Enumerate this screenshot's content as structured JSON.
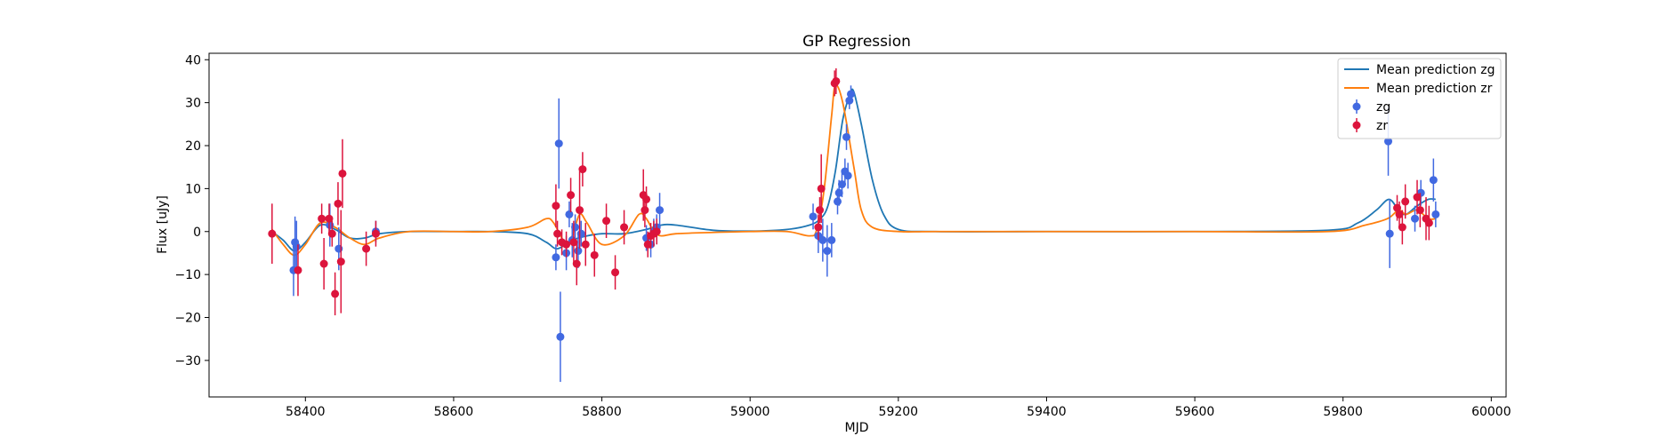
{
  "chart_data": {
    "type": "scatter",
    "title": "GP Regression",
    "xlabel": "MJD",
    "ylabel": "Flux [uJy]",
    "xlim": [
      58270,
      60020
    ],
    "ylim": [
      -38.5,
      41.5
    ],
    "xticks": [
      58400,
      58600,
      58800,
      59000,
      59200,
      59400,
      59600,
      59800,
      60000
    ],
    "yticks": [
      -30,
      -20,
      -10,
      0,
      10,
      20,
      30,
      40
    ],
    "legend_position": "top-right",
    "colors": {
      "zg_line": "#1f77b4",
      "zr_line": "#ff7f0e",
      "zg_points": "#4169e1",
      "zr_points": "#dc143c"
    },
    "series": [
      {
        "name": "Mean prediction zg",
        "kind": "line",
        "x": [
          58355,
          58370,
          58385,
          58400,
          58420,
          58440,
          58460,
          58480,
          58500,
          58540,
          58600,
          58650,
          58700,
          58725,
          58740,
          58760,
          58780,
          58800,
          58830,
          58860,
          58880,
          58900,
          58950,
          59000,
          59050,
          59080,
          59095,
          59105,
          59115,
          59125,
          59135,
          59140,
          59150,
          59165,
          59180,
          59200,
          59250,
          59400,
          59600,
          59780,
          59820,
          59845,
          59862,
          59875,
          59885,
          59900,
          59915,
          59925
        ],
        "y": [
          0,
          -2,
          -4.5,
          -2.5,
          1.5,
          0.5,
          -1.5,
          -1.5,
          -0.5,
          0,
          0,
          0,
          -0.5,
          -2.5,
          -4,
          -2,
          -1,
          -0.5,
          -0.5,
          0.5,
          1.5,
          1.5,
          0.3,
          0.1,
          0.5,
          1.5,
          3,
          6,
          14,
          26,
          32,
          32.5,
          25,
          12,
          4,
          0.5,
          0,
          0,
          0,
          0.3,
          2,
          5,
          7.5,
          5,
          4,
          6,
          7.5,
          7.5
        ]
      },
      {
        "name": "Mean prediction zr",
        "kind": "line",
        "x": [
          58355,
          58370,
          58385,
          58400,
          58420,
          58440,
          58460,
          58480,
          58500,
          58540,
          58600,
          58650,
          58700,
          58725,
          58735,
          58750,
          58760,
          58770,
          58780,
          58800,
          58830,
          58850,
          58860,
          58870,
          58880,
          58900,
          58950,
          59000,
          59050,
          59080,
          59090,
          59100,
          59110,
          59115,
          59125,
          59140,
          59150,
          59165,
          59200,
          59250,
          59400,
          59600,
          59780,
          59830,
          59860,
          59875,
          59885,
          59900,
          59915,
          59925
        ],
        "y": [
          0.5,
          -3,
          -5.5,
          -3,
          2,
          1,
          -1.5,
          -3,
          -1.5,
          0,
          0,
          0,
          1,
          3,
          2,
          -2.5,
          -1,
          4,
          2,
          -3,
          -1,
          4,
          3,
          0,
          -1,
          -0.5,
          -0.2,
          0,
          0,
          -1,
          0.5,
          10,
          27,
          34,
          30,
          15,
          5,
          1,
          0,
          0,
          0,
          0,
          0,
          1.5,
          3,
          5,
          4,
          5,
          3,
          3
        ]
      }
    ],
    "points": [
      {
        "name": "zg",
        "x": [
          58384,
          58386,
          58388,
          58433,
          58445,
          58495,
          58738,
          58742,
          58744,
          58752,
          58756,
          58760,
          58764,
          58768,
          58772,
          58860,
          58866,
          58870,
          58874,
          58878,
          59085,
          59092,
          59098,
          59104,
          59110,
          59118,
          59120,
          59124,
          59128,
          59130,
          59132,
          59134,
          59136,
          59861,
          59863,
          59897,
          59905,
          59922,
          59925
        ],
        "y": [
          -9,
          -2.5,
          -3.5,
          1.5,
          -4,
          0,
          -6,
          20.5,
          -24.5,
          -5,
          4,
          -2,
          1,
          -4.5,
          -0.5,
          -1.5,
          -3,
          0,
          1,
          5,
          3.5,
          -1,
          -2,
          -4.5,
          -2,
          7,
          9,
          11,
          14,
          22,
          13,
          30.5,
          32,
          21,
          -0.5,
          3,
          9,
          12,
          4
        ],
        "yerr": [
          6,
          6,
          6,
          5,
          5,
          2.5,
          3,
          10.5,
          10.5,
          4,
          3,
          4,
          3,
          4,
          3,
          3,
          3,
          3,
          3,
          4,
          3,
          4,
          5,
          6,
          4,
          3,
          3,
          3,
          3,
          3,
          3,
          2,
          2,
          8,
          8,
          3,
          3,
          5,
          3
        ]
      },
      {
        "name": "zr",
        "x": [
          58355,
          58390,
          58422,
          58425,
          58432,
          58436,
          58440,
          58444,
          58448,
          58450,
          58482,
          58495,
          58738,
          58740,
          58746,
          58752,
          58758,
          58762,
          58766,
          58770,
          58774,
          58778,
          58790,
          58806,
          58818,
          58830,
          58856,
          58858,
          58860,
          58862,
          58866,
          58870,
          58874,
          59092,
          59094,
          59096,
          59114,
          59116,
          59873,
          59876,
          59880,
          59884,
          59900,
          59904,
          59912,
          59916
        ],
        "y": [
          -0.5,
          -9,
          3,
          -7.5,
          3,
          -0.5,
          -14.5,
          6.5,
          -7,
          13.5,
          -4,
          -0.5,
          6,
          -0.5,
          -2.5,
          -3,
          8.5,
          -2.5,
          -7.5,
          5,
          14.5,
          -3,
          -5.5,
          2.5,
          -9.5,
          1,
          8.5,
          5,
          7.5,
          -3,
          -1,
          -0.5,
          0,
          1,
          5,
          10,
          34.5,
          35,
          5.5,
          4,
          1,
          7,
          8,
          5,
          3,
          2
        ],
        "yerr": [
          7,
          6,
          3.5,
          6,
          3.5,
          3,
          5,
          5,
          12,
          8,
          4,
          3,
          5,
          3,
          3,
          3,
          4,
          5,
          5,
          9,
          4,
          5,
          5,
          4,
          4,
          4,
          6,
          4,
          3,
          3,
          3,
          3,
          3,
          3,
          3,
          8,
          3,
          3,
          3,
          3,
          4,
          4,
          4,
          4,
          5,
          4
        ]
      }
    ]
  }
}
